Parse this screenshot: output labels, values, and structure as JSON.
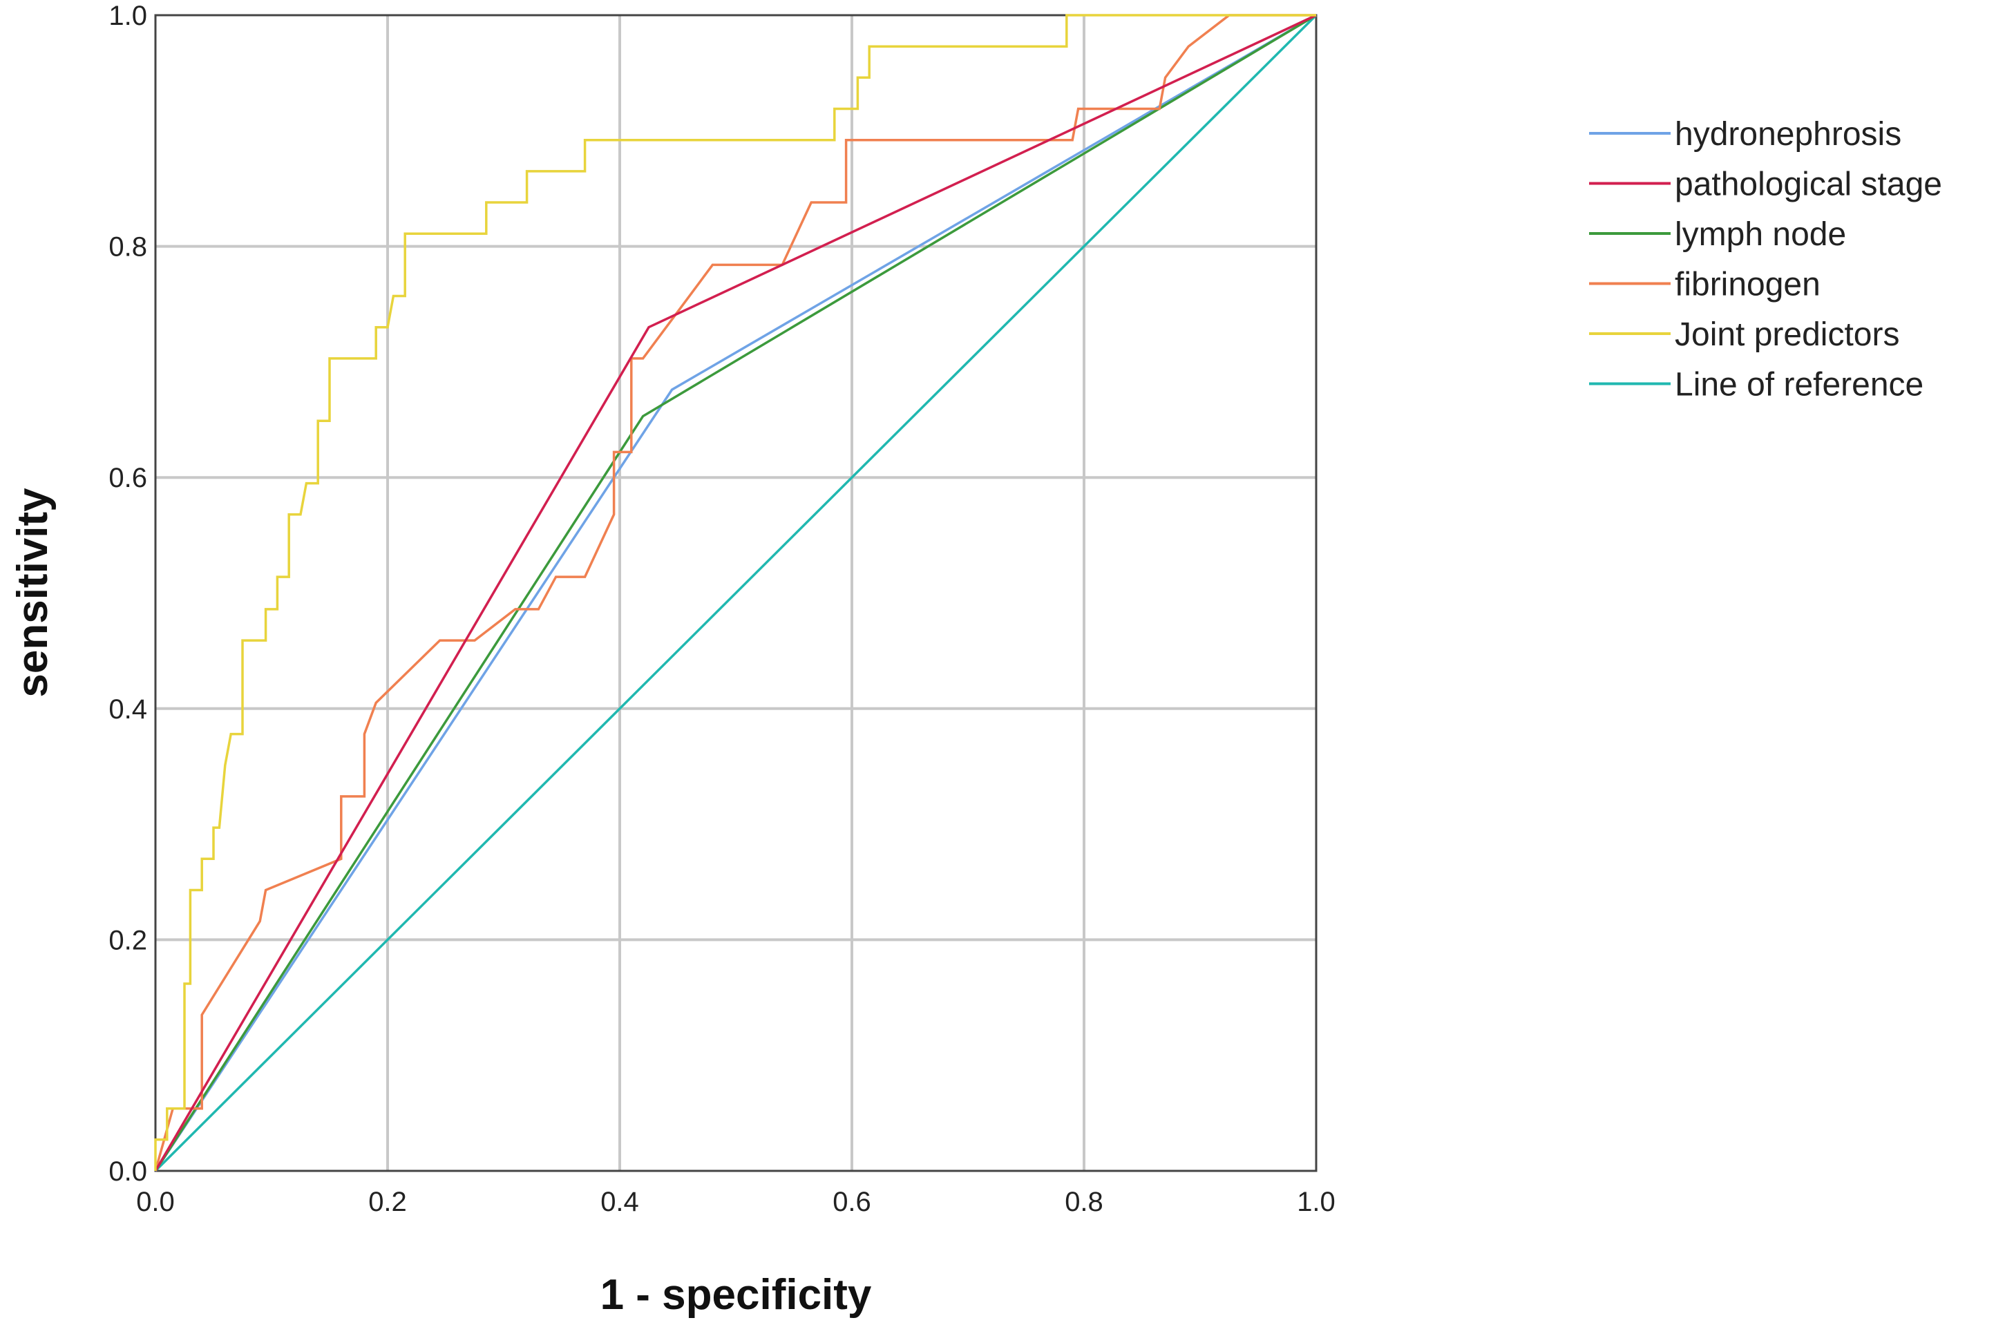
{
  "chart_data": {
    "type": "line",
    "title": "",
    "xlabel": "1 - specificity",
    "ylabel": "sensitivity",
    "xlim": [
      0,
      1
    ],
    "ylim": [
      0,
      1
    ],
    "xticks": [
      "0.0",
      "0.2",
      "0.4",
      "0.6",
      "0.8",
      "1.0"
    ],
    "yticks": [
      "0.0",
      "0.2",
      "0.4",
      "0.6",
      "0.8",
      "1.0"
    ],
    "grid": true,
    "legend_position": "right",
    "series": [
      {
        "name": "hydronephrosis",
        "color": "#6fa3e6",
        "points": [
          [
            0,
            0
          ],
          [
            0.445,
            0.676
          ],
          [
            1,
            1
          ]
        ]
      },
      {
        "name": " pathological stage",
        "color": "#d21f4f",
        "points": [
          [
            0,
            0
          ],
          [
            0.425,
            0.73
          ],
          [
            1,
            1
          ]
        ]
      },
      {
        "name": "lymph node",
        "color": "#3c9a3c",
        "points": [
          [
            0,
            0
          ],
          [
            0.42,
            0.653
          ],
          [
            1,
            1
          ]
        ]
      },
      {
        "name": "fibrinogen",
        "color": "#f08050",
        "points": [
          [
            0,
            0
          ],
          [
            0.015,
            0.054
          ],
          [
            0.04,
            0.054
          ],
          [
            0.04,
            0.135
          ],
          [
            0.09,
            0.216
          ],
          [
            0.095,
            0.243
          ],
          [
            0.16,
            0.27
          ],
          [
            0.16,
            0.324
          ],
          [
            0.18,
            0.324
          ],
          [
            0.18,
            0.378
          ],
          [
            0.19,
            0.405
          ],
          [
            0.245,
            0.459
          ],
          [
            0.275,
            0.459
          ],
          [
            0.31,
            0.486
          ],
          [
            0.33,
            0.486
          ],
          [
            0.345,
            0.514
          ],
          [
            0.37,
            0.514
          ],
          [
            0.395,
            0.568
          ],
          [
            0.395,
            0.622
          ],
          [
            0.41,
            0.622
          ],
          [
            0.41,
            0.703
          ],
          [
            0.42,
            0.703
          ],
          [
            0.48,
            0.784
          ],
          [
            0.54,
            0.784
          ],
          [
            0.565,
            0.838
          ],
          [
            0.595,
            0.838
          ],
          [
            0.595,
            0.892
          ],
          [
            0.79,
            0.892
          ],
          [
            0.795,
            0.919
          ],
          [
            0.865,
            0.919
          ],
          [
            0.87,
            0.946
          ],
          [
            0.89,
            0.973
          ],
          [
            0.925,
            1.0
          ],
          [
            1.0,
            1.0
          ]
        ]
      },
      {
        "name": "Joint predictors",
        "color": "#e8d43c",
        "points": [
          [
            0,
            0
          ],
          [
            0,
            0.027
          ],
          [
            0.01,
            0.027
          ],
          [
            0.01,
            0.054
          ],
          [
            0.025,
            0.054
          ],
          [
            0.025,
            0.162
          ],
          [
            0.03,
            0.162
          ],
          [
            0.03,
            0.243
          ],
          [
            0.04,
            0.243
          ],
          [
            0.04,
            0.27
          ],
          [
            0.05,
            0.27
          ],
          [
            0.05,
            0.297
          ],
          [
            0.055,
            0.297
          ],
          [
            0.06,
            0.351
          ],
          [
            0.065,
            0.378
          ],
          [
            0.075,
            0.378
          ],
          [
            0.075,
            0.459
          ],
          [
            0.095,
            0.459
          ],
          [
            0.095,
            0.486
          ],
          [
            0.105,
            0.486
          ],
          [
            0.105,
            0.514
          ],
          [
            0.115,
            0.514
          ],
          [
            0.115,
            0.568
          ],
          [
            0.125,
            0.568
          ],
          [
            0.13,
            0.595
          ],
          [
            0.14,
            0.595
          ],
          [
            0.14,
            0.649
          ],
          [
            0.15,
            0.649
          ],
          [
            0.15,
            0.703
          ],
          [
            0.19,
            0.703
          ],
          [
            0.19,
            0.73
          ],
          [
            0.2,
            0.73
          ],
          [
            0.205,
            0.757
          ],
          [
            0.215,
            0.757
          ],
          [
            0.215,
            0.811
          ],
          [
            0.285,
            0.811
          ],
          [
            0.285,
            0.838
          ],
          [
            0.32,
            0.838
          ],
          [
            0.32,
            0.865
          ],
          [
            0.37,
            0.865
          ],
          [
            0.37,
            0.892
          ],
          [
            0.585,
            0.892
          ],
          [
            0.585,
            0.919
          ],
          [
            0.605,
            0.919
          ],
          [
            0.605,
            0.946
          ],
          [
            0.615,
            0.946
          ],
          [
            0.615,
            0.973
          ],
          [
            0.785,
            0.973
          ],
          [
            0.785,
            1.0
          ],
          [
            1.0,
            1.0
          ]
        ]
      },
      {
        "name": "Line of reference",
        "color": "#20b8b0",
        "points": [
          [
            0,
            0
          ],
          [
            1,
            1
          ]
        ]
      }
    ]
  }
}
